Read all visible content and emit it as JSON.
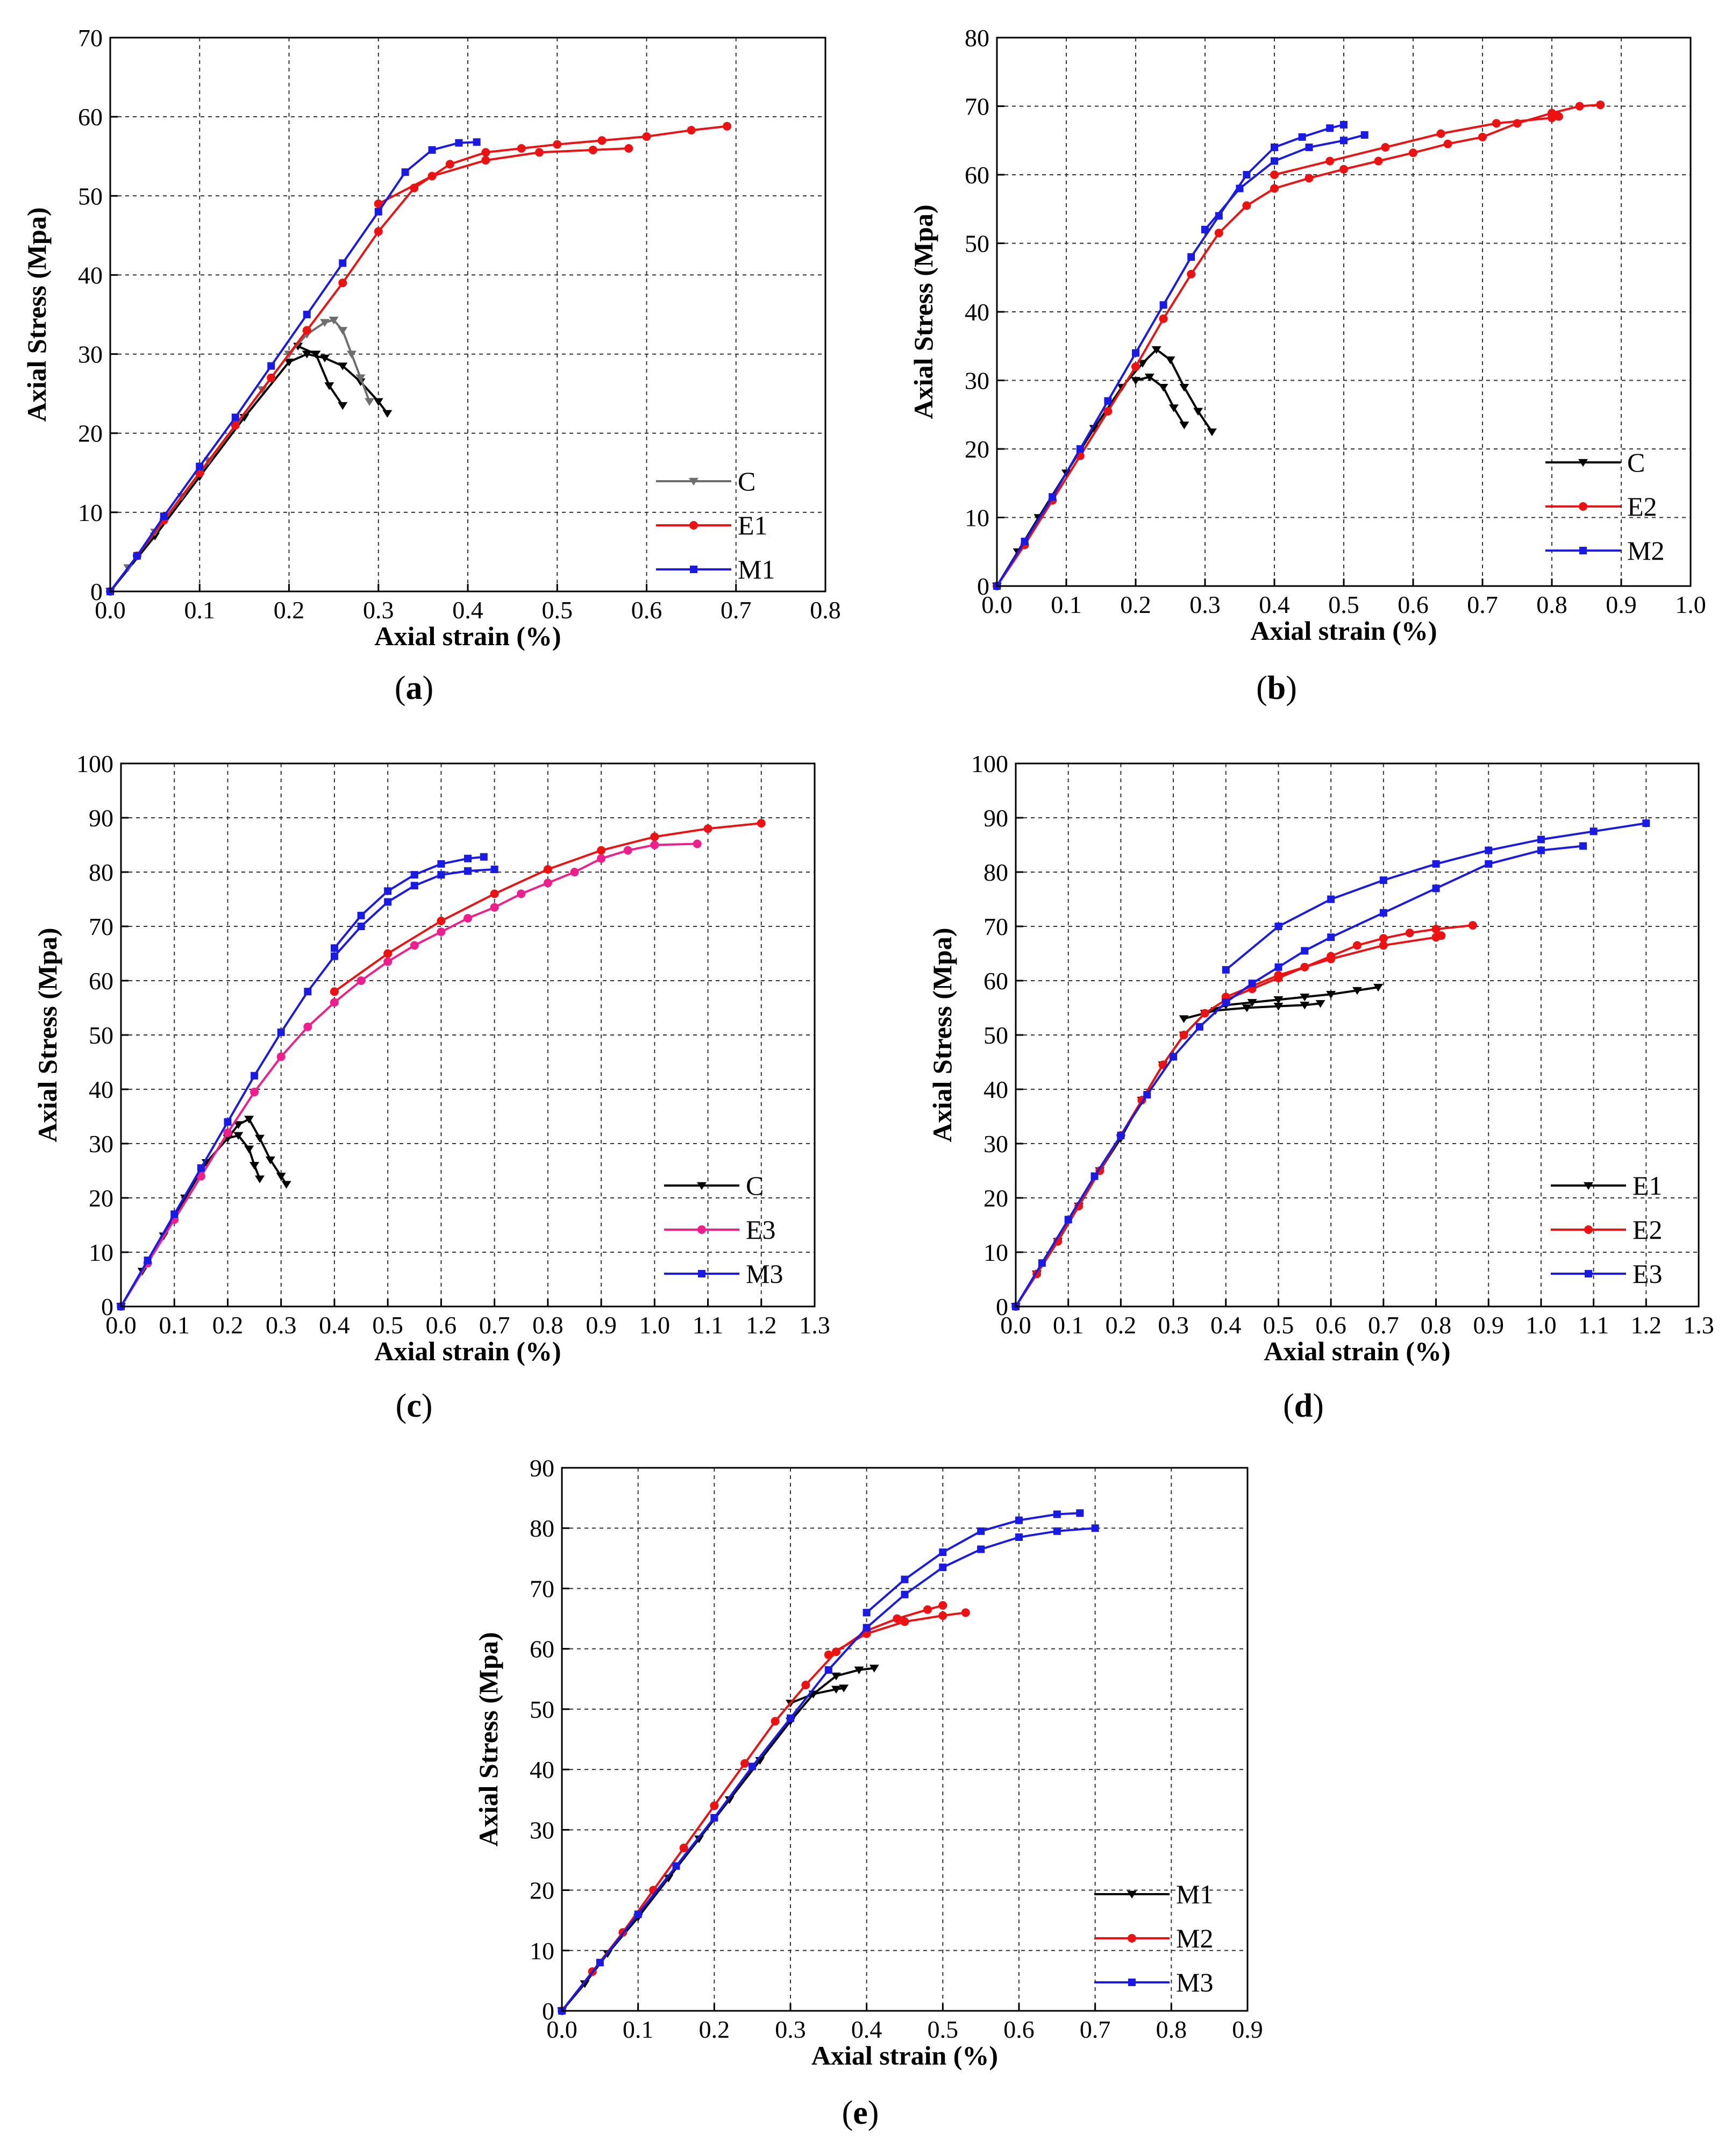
{
  "colors": {
    "black": "#000000",
    "gray": "#6e6e6e",
    "red": "#ee1111",
    "blue": "#1a1ae6",
    "pink": "#f01e8c"
  },
  "chart_data": [
    {
      "id": "a",
      "type": "line",
      "caption": "a",
      "xlabel": "Axial strain (%)",
      "ylabel": "Axial Stress (Mpa)",
      "xlim": [
        0,
        0.8
      ],
      "ylim": [
        0,
        70
      ],
      "xstep": 0.1,
      "ystep": 10,
      "xdec": 1,
      "legend_position": "bottom-right",
      "series": [
        {
          "name": "C",
          "color": "gray",
          "marker": "tri",
          "x": [
            0,
            0.02,
            0.05,
            0.08,
            0.11,
            0.14,
            0.17,
            0.2,
            0.22,
            0.24,
            0.25,
            0.26,
            0.27,
            0.28,
            0.29
          ],
          "y": [
            0,
            3,
            7.5,
            12,
            16.5,
            21,
            25.5,
            30,
            32.5,
            34,
            34.3,
            33,
            30,
            27,
            24
          ]
        },
        {
          "name": "E1",
          "color": "red",
          "marker": "circle",
          "x": [
            0,
            0.03,
            0.06,
            0.1,
            0.14,
            0.18,
            0.22,
            0.26,
            0.3,
            0.34,
            0.38,
            0.42,
            0.46,
            0.5,
            0.55,
            0.6,
            0.65,
            0.69
          ],
          "y": [
            0,
            4.5,
            9,
            15,
            21,
            27,
            33,
            39,
            45.5,
            51,
            54,
            55.5,
            56,
            56.5,
            57,
            57.5,
            58.3,
            58.8
          ]
        },
        {
          "name": "M1",
          "color": "blue",
          "marker": "square",
          "x": [
            0,
            0.03,
            0.06,
            0.1,
            0.14,
            0.18,
            0.22,
            0.26,
            0.3,
            0.33,
            0.36,
            0.39,
            0.41
          ],
          "y": [
            0,
            4.5,
            9.5,
            15.8,
            22,
            28.5,
            35,
            41.5,
            48,
            53,
            55.8,
            56.7,
            56.8
          ]
        }
      ],
      "extra_lines": [
        {
          "color": "black",
          "marker": "tri",
          "x": [
            0,
            0.05,
            0.1,
            0.15,
            0.2,
            0.22,
            0.24,
            0.26,
            0.28,
            0.3,
            0.31
          ],
          "y": [
            0,
            7,
            14.5,
            22,
            29,
            30,
            29.5,
            28.5,
            26.5,
            24,
            22.5
          ]
        },
        {
          "color": "black",
          "marker": "tri",
          "x": [
            0.21,
            0.23,
            0.245,
            0.26
          ],
          "y": [
            31,
            30,
            26,
            23.5
          ]
        },
        {
          "color": "red",
          "marker": "circle",
          "x": [
            0.3,
            0.36,
            0.42,
            0.48,
            0.54,
            0.58
          ],
          "y": [
            49,
            52.5,
            54.5,
            55.5,
            55.8,
            56
          ]
        }
      ]
    },
    {
      "id": "b",
      "type": "line",
      "caption": "b",
      "xlabel": "Axial strain (%)",
      "ylabel": "Axial Stress (Mpa)",
      "xlim": [
        0,
        1.0
      ],
      "ylim": [
        0,
        80
      ],
      "xstep": 0.1,
      "ystep": 10,
      "xdec": 1,
      "legend_position": "bottom-right",
      "series": [
        {
          "name": "C",
          "color": "black",
          "marker": "tri",
          "x": [
            0,
            0.03,
            0.06,
            0.1,
            0.14,
            0.18,
            0.21,
            0.23,
            0.25,
            0.27,
            0.29,
            0.31
          ],
          "y": [
            0,
            5,
            10,
            16.5,
            23,
            29,
            32.5,
            34.5,
            33,
            29,
            25.5,
            22.5
          ]
        },
        {
          "name": "E2",
          "color": "red",
          "marker": "circle",
          "x": [
            0,
            0.04,
            0.08,
            0.12,
            0.16,
            0.2,
            0.24,
            0.28,
            0.32,
            0.36,
            0.4,
            0.45,
            0.5,
            0.55,
            0.6,
            0.65,
            0.7,
            0.75,
            0.8,
            0.84,
            0.87
          ],
          "y": [
            0,
            6,
            12.5,
            19,
            25.5,
            32,
            39,
            45.5,
            51.5,
            55.5,
            58,
            59.5,
            60.8,
            62,
            63.2,
            64.5,
            65.5,
            67.5,
            69,
            70,
            70.2
          ]
        },
        {
          "name": "M2",
          "color": "blue",
          "marker": "square",
          "x": [
            0,
            0.04,
            0.08,
            0.12,
            0.16,
            0.2,
            0.24,
            0.28,
            0.32,
            0.36,
            0.4,
            0.44,
            0.48,
            0.5
          ],
          "y": [
            0,
            6.5,
            13,
            20,
            27,
            34,
            41,
            48,
            54,
            60,
            64,
            65.5,
            66.8,
            67.3
          ]
        }
      ],
      "extra_lines": [
        {
          "color": "blue",
          "marker": "square",
          "x": [
            0.3,
            0.35,
            0.4,
            0.45,
            0.5,
            0.53
          ],
          "y": [
            52,
            58,
            62,
            64,
            65,
            65.8
          ]
        },
        {
          "color": "red",
          "marker": "circle",
          "x": [
            0.4,
            0.48,
            0.56,
            0.64,
            0.72,
            0.8,
            0.81
          ],
          "y": [
            60,
            62,
            64,
            66,
            67.5,
            68.3,
            68.5
          ]
        },
        {
          "color": "black",
          "marker": "tri",
          "x": [
            0.2,
            0.22,
            0.24,
            0.255,
            0.27
          ],
          "y": [
            30,
            30.5,
            29,
            26,
            23.5
          ]
        }
      ]
    },
    {
      "id": "c",
      "type": "line",
      "caption": "c",
      "xlabel": "Axial strain (%)",
      "ylabel": "Axial Stress (Mpa)",
      "xlim": [
        0,
        1.3
      ],
      "ylim": [
        0,
        100
      ],
      "xstep": 0.1,
      "ystep": 10,
      "xdec": 1,
      "legend_position": "bottom-right",
      "series": [
        {
          "name": "C",
          "color": "black",
          "marker": "tri",
          "x": [
            0,
            0.04,
            0.08,
            0.12,
            0.16,
            0.2,
            0.22,
            0.24,
            0.26,
            0.28,
            0.3,
            0.31
          ],
          "y": [
            0,
            6.5,
            13,
            20,
            26.5,
            31,
            33.5,
            34.5,
            31,
            27,
            24,
            22.5
          ]
        },
        {
          "name": "E3",
          "color": "pink",
          "marker": "circle",
          "x": [
            0,
            0.05,
            0.1,
            0.15,
            0.2,
            0.25,
            0.3,
            0.35,
            0.4,
            0.45,
            0.5,
            0.55,
            0.6,
            0.65,
            0.7,
            0.75,
            0.8,
            0.85,
            0.9,
            0.95,
            1.0,
            1.08
          ],
          "y": [
            0,
            8,
            16,
            24,
            32,
            39.5,
            46,
            51.5,
            56,
            60,
            63.5,
            66.5,
            69,
            71.5,
            73.5,
            76,
            78,
            80,
            82.5,
            84,
            85,
            85.2
          ]
        },
        {
          "name": "M3",
          "color": "blue",
          "marker": "square",
          "x": [
            0,
            0.05,
            0.1,
            0.15,
            0.2,
            0.25,
            0.3,
            0.35,
            0.4,
            0.45,
            0.5,
            0.55,
            0.6,
            0.65,
            0.7
          ],
          "y": [
            0,
            8.5,
            17,
            25.5,
            34,
            42.5,
            50.5,
            58,
            64.5,
            70,
            74.5,
            77.5,
            79.5,
            80.2,
            80.5
          ]
        }
      ],
      "extra_lines": [
        {
          "color": "red",
          "marker": "circle",
          "x": [
            0.4,
            0.5,
            0.6,
            0.7,
            0.8,
            0.9,
            1.0,
            1.1,
            1.2
          ],
          "y": [
            58,
            65,
            71,
            76,
            80.5,
            84,
            86.5,
            88,
            89
          ]
        },
        {
          "color": "blue",
          "marker": "square",
          "x": [
            0.4,
            0.45,
            0.5,
            0.55,
            0.6,
            0.65,
            0.68
          ],
          "y": [
            66,
            72,
            76.5,
            79.5,
            81.5,
            82.5,
            82.8
          ]
        },
        {
          "color": "black",
          "marker": "tri",
          "x": [
            0.2,
            0.22,
            0.24,
            0.25,
            0.26
          ],
          "y": [
            31,
            31.5,
            29,
            26,
            23.5
          ]
        }
      ]
    },
    {
      "id": "d",
      "type": "line",
      "caption": "d",
      "xlabel": "Axial strain (%)",
      "ylabel": "Axial Stress (Mpa)",
      "xlim": [
        0,
        1.3
      ],
      "ylim": [
        0,
        100
      ],
      "xstep": 0.1,
      "ystep": 10,
      "xdec": 1,
      "legend_position": "bottom-right",
      "series": [
        {
          "name": "E1",
          "color": "black",
          "marker": "tri",
          "x": [
            0,
            0.04,
            0.08,
            0.12,
            0.16,
            0.2,
            0.24,
            0.28,
            0.32,
            0.36,
            0.4,
            0.45,
            0.5,
            0.55,
            0.6,
            0.65,
            0.69
          ],
          "y": [
            0,
            6,
            12,
            18.5,
            25,
            31,
            38,
            44.5,
            50,
            54,
            55.5,
            56,
            56.5,
            57,
            57.5,
            58.2,
            58.8
          ]
        },
        {
          "name": "E2",
          "color": "red",
          "marker": "circle",
          "x": [
            0,
            0.04,
            0.08,
            0.12,
            0.16,
            0.2,
            0.24,
            0.28,
            0.32,
            0.36,
            0.4,
            0.45,
            0.5,
            0.55,
            0.6,
            0.65,
            0.7,
            0.75,
            0.8,
            0.87
          ],
          "y": [
            0,
            6,
            12,
            18.5,
            25,
            31.5,
            38,
            44.5,
            50,
            54,
            56.5,
            58.5,
            60.5,
            62.5,
            64.5,
            66.5,
            67.8,
            68.8,
            69.5,
            70.2
          ]
        },
        {
          "name": "E3",
          "color": "blue",
          "marker": "square",
          "x": [
            0,
            0.05,
            0.1,
            0.15,
            0.2,
            0.25,
            0.3,
            0.35,
            0.4,
            0.45,
            0.5,
            0.55,
            0.6,
            0.7,
            0.8,
            0.9,
            1.0,
            1.08
          ],
          "y": [
            0,
            8,
            16,
            24,
            31.5,
            39,
            46,
            51.5,
            56,
            59.5,
            62.5,
            65.5,
            68,
            72.5,
            77,
            81.5,
            84,
            84.8
          ]
        }
      ],
      "extra_lines": [
        {
          "color": "blue",
          "marker": "square",
          "x": [
            0.4,
            0.5,
            0.6,
            0.7,
            0.8,
            0.9,
            1.0,
            1.1,
            1.2
          ],
          "y": [
            62,
            70,
            75,
            78.5,
            81.5,
            84,
            86,
            87.5,
            89
          ]
        },
        {
          "color": "red",
          "marker": "circle",
          "x": [
            0.4,
            0.5,
            0.6,
            0.7,
            0.8,
            0.81
          ],
          "y": [
            57,
            61,
            64,
            66.5,
            68,
            68.3
          ]
        },
        {
          "color": "black",
          "marker": "tri",
          "x": [
            0.32,
            0.38,
            0.44,
            0.5,
            0.55,
            0.58
          ],
          "y": [
            53,
            54.5,
            55,
            55.3,
            55.5,
            55.8
          ]
        }
      ]
    },
    {
      "id": "e",
      "type": "line",
      "caption": "e",
      "xlabel": "Axial strain (%)",
      "ylabel": "Axial Stress (Mpa)",
      "xlim": [
        0,
        0.9
      ],
      "ylim": [
        0,
        90
      ],
      "xstep": 0.1,
      "ystep": 10,
      "xdec": 1,
      "legend_position": "bottom-right",
      "series": [
        {
          "name": "M1",
          "color": "black",
          "marker": "tri",
          "x": [
            0,
            0.03,
            0.06,
            0.1,
            0.14,
            0.18,
            0.22,
            0.26,
            0.3,
            0.33,
            0.36,
            0.39,
            0.41
          ],
          "y": [
            0,
            4.5,
            9.5,
            15.5,
            22,
            28.5,
            35,
            41.5,
            48,
            52.5,
            55.5,
            56.5,
            56.8
          ]
        },
        {
          "name": "M2",
          "color": "red",
          "marker": "circle",
          "x": [
            0,
            0.04,
            0.08,
            0.12,
            0.16,
            0.2,
            0.24,
            0.28,
            0.32,
            0.36,
            0.4,
            0.44,
            0.48,
            0.5
          ],
          "y": [
            0,
            6.5,
            13,
            20,
            27,
            34,
            41,
            48,
            54,
            59.5,
            63,
            65,
            66.5,
            67.2
          ]
        },
        {
          "name": "M3",
          "color": "blue",
          "marker": "square",
          "x": [
            0,
            0.05,
            0.1,
            0.15,
            0.2,
            0.25,
            0.3,
            0.35,
            0.4,
            0.45,
            0.5,
            0.55,
            0.6,
            0.65,
            0.7
          ],
          "y": [
            0,
            8,
            16,
            24,
            32,
            40.5,
            48.5,
            56.5,
            63.5,
            69,
            73.5,
            76.5,
            78.5,
            79.5,
            80
          ]
        }
      ],
      "extra_lines": [
        {
          "color": "blue",
          "marker": "square",
          "x": [
            0.4,
            0.45,
            0.5,
            0.55,
            0.6,
            0.65,
            0.68
          ],
          "y": [
            66,
            71.5,
            76,
            79.5,
            81.3,
            82.3,
            82.5
          ]
        },
        {
          "color": "red",
          "marker": "circle",
          "x": [
            0.35,
            0.4,
            0.45,
            0.5,
            0.53
          ],
          "y": [
            59,
            62.5,
            64.5,
            65.5,
            66
          ]
        },
        {
          "color": "black",
          "marker": "tri",
          "x": [
            0.3,
            0.33,
            0.36,
            0.37
          ],
          "y": [
            51,
            52.5,
            53.3,
            53.5
          ]
        }
      ]
    }
  ]
}
